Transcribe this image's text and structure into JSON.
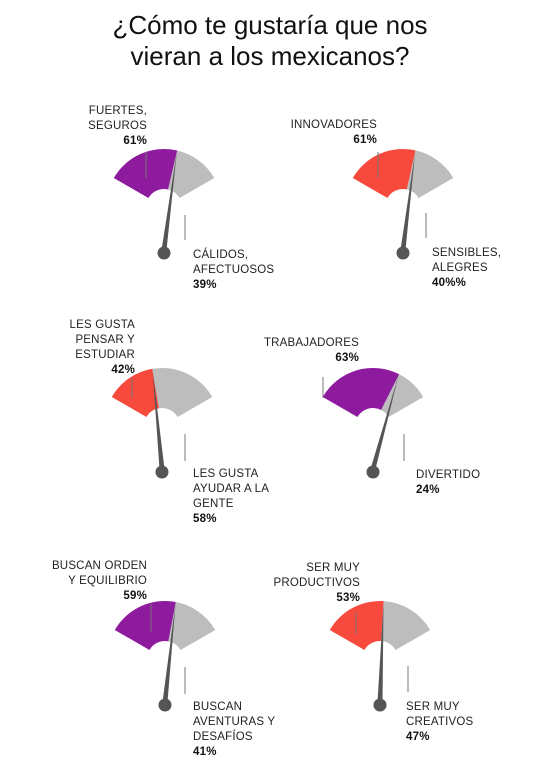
{
  "header": {
    "title_line1": "¿Cómo te gustaría que nos",
    "title_line2": "vieran a los mexicanos?"
  },
  "colors": {
    "purple": "#8e1a9e",
    "red": "#f74a3d",
    "gray": "#bdbdbd",
    "needle": "#555555",
    "leader": "#777777"
  },
  "chart_data": [
    {
      "type": "gauge",
      "left_label": "FUERTES,\nSEGUROS",
      "left_value_text": "61%",
      "left_value": 61,
      "right_label": "CÁLIDOS,\nAFECTUOSOS",
      "right_value_text": "39%",
      "right_value": 39,
      "color": "purple"
    },
    {
      "type": "gauge",
      "left_label": "INNOVADORES",
      "left_value_text": "61%",
      "left_value": 61,
      "right_label": "SENSIBLES,\nALEGRES",
      "right_value_text": "40%%",
      "right_value": 40,
      "color": "red"
    },
    {
      "type": "gauge",
      "left_label": "LES GUSTA\nPENSAR Y\nESTUDIAR",
      "left_value_text": "42%",
      "left_value": 42,
      "right_label": "LES GUSTA\nAYUDAR A LA\nGENTE",
      "right_value_text": "58%",
      "right_value": 58,
      "color": "red"
    },
    {
      "type": "gauge",
      "left_label": "TRABAJADORES",
      "left_value_text": "63%",
      "left_value": 63,
      "right_label": "DIVERTIDO",
      "right_value_text": "24%",
      "right_value": 24,
      "color": "purple"
    },
    {
      "type": "gauge",
      "left_label": "BUSCAN ORDEN\nY EQUILIBRIO",
      "left_value_text": "59%",
      "left_value": 59,
      "right_label": "BUSCAN\nAVENTURAS Y\nDESAFÍOS",
      "right_value_text": "41%",
      "right_value": 41,
      "color": "purple"
    },
    {
      "type": "gauge",
      "left_label": "SER MUY\nPRODUCTIVOS",
      "left_value_text": "53%",
      "left_value": 53,
      "right_label": "SER MUY\nCREATIVOS",
      "right_value_text": "47%",
      "right_value": 47,
      "color": "red"
    }
  ]
}
